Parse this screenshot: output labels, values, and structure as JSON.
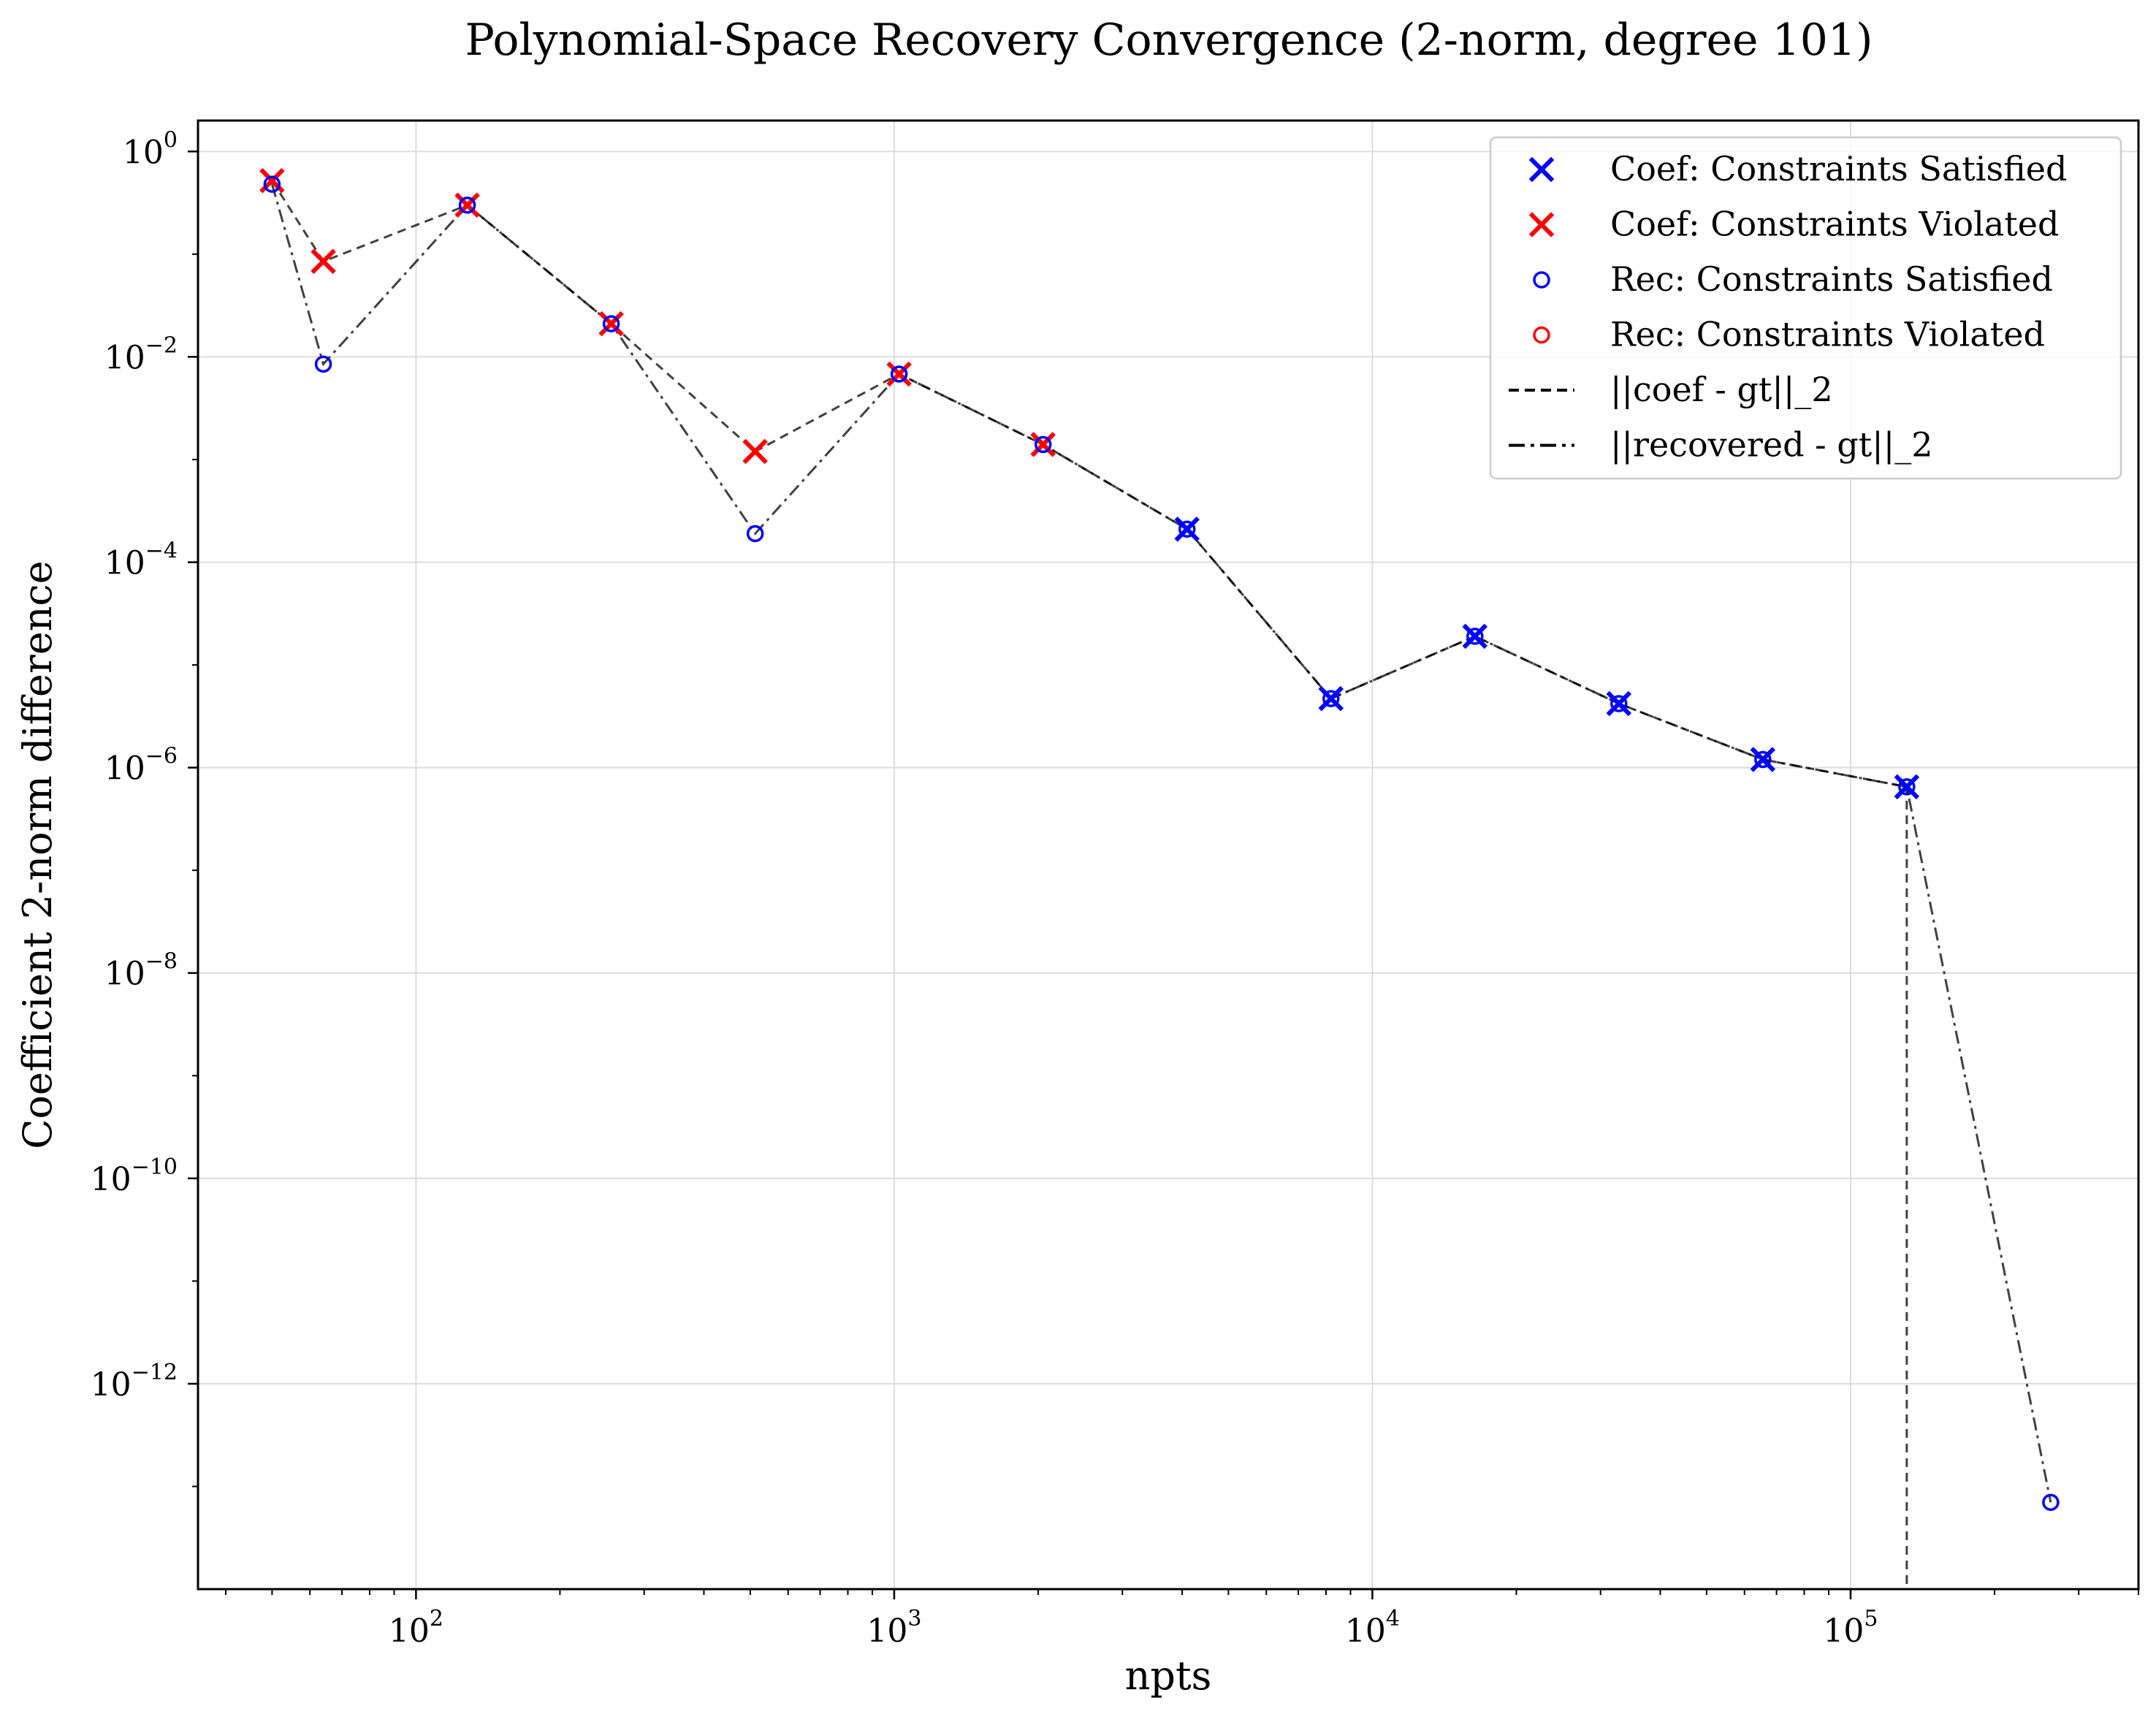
{
  "chart_data": {
    "type": "scatter",
    "title": "Polynomial-Space Recovery Convergence (2-norm, degree 101)",
    "xlabel": "npts",
    "ylabel": "Coefficient 2-norm difference",
    "xscale": "log",
    "yscale": "log",
    "xlim": [
      35,
      400000
    ],
    "ylim": [
      1e-14,
      2.0
    ],
    "xticks": [
      {
        "value": 100,
        "base": "10",
        "exp": "2"
      },
      {
        "value": 1000,
        "base": "10",
        "exp": "3"
      },
      {
        "value": 10000,
        "base": "10",
        "exp": "4"
      },
      {
        "value": 100000,
        "base": "10",
        "exp": "5"
      }
    ],
    "yticks": [
      {
        "value": 1,
        "base": "10",
        "exp": "0"
      },
      {
        "value": 0.01,
        "base": "10",
        "exp": "−2"
      },
      {
        "value": 0.0001,
        "base": "10",
        "exp": "−4"
      },
      {
        "value": 1e-06,
        "base": "10",
        "exp": "−6"
      },
      {
        "value": 1e-08,
        "base": "10",
        "exp": "−8"
      },
      {
        "value": 1e-10,
        "base": "10",
        "exp": "−10"
      },
      {
        "value": 1e-12,
        "base": "10",
        "exp": "−12"
      }
    ],
    "grid": true,
    "legend_position": "top-right",
    "x": [
      50,
      64,
      128,
      256,
      512,
      1024,
      2048,
      4096,
      8192,
      16384,
      32768,
      65536,
      131072,
      262144
    ],
    "coef_error": [
      0.52,
      0.085,
      0.3,
      0.021,
      0.0012,
      0.0068,
      0.0014,
      0.00021,
      4.7e-06,
      1.9e-05,
      4.2e-06,
      1.2e-06,
      6.5e-07,
      null
    ],
    "coef_status": [
      "violated",
      "violated",
      "violated",
      "violated",
      "violated",
      "violated",
      "violated",
      "satisfied",
      "satisfied",
      "satisfied",
      "satisfied",
      "satisfied",
      "satisfied",
      null
    ],
    "recovered_error": [
      0.48,
      0.0085,
      0.3,
      0.021,
      0.00019,
      0.0068,
      0.0014,
      0.00021,
      4.7e-06,
      1.9e-05,
      4.2e-06,
      1.2e-06,
      6.5e-07,
      7e-14
    ],
    "recovered_status": [
      "satisfied",
      "satisfied",
      "satisfied",
      "satisfied",
      "satisfied",
      "satisfied",
      "satisfied",
      "satisfied",
      "satisfied",
      "satisfied",
      "satisfied",
      "satisfied",
      "satisfied",
      "satisfied"
    ],
    "coef_line_drops_to_bottom_after": 131072,
    "colors": {
      "satisfied": "#0000ff",
      "violated": "#ff0000",
      "line": "#000000",
      "grid": "#dddddd"
    },
    "legend": [
      {
        "label": "Coef: Constraints Satisfied",
        "marker": "x",
        "color": "#0000ff"
      },
      {
        "label": "Coef: Constraints Violated",
        "marker": "x",
        "color": "#ff0000"
      },
      {
        "label": "Rec: Constraints Satisfied",
        "marker": "circle",
        "color": "#0000ff"
      },
      {
        "label": "Rec: Constraints Violated",
        "marker": "circle",
        "color": "#ff0000"
      },
      {
        "label": "||coef - gt||_2",
        "marker": "dashed-line",
        "color": "#000000"
      },
      {
        "label": "||recovered - gt||_2",
        "marker": "dashdot-line",
        "color": "#000000"
      }
    ]
  }
}
